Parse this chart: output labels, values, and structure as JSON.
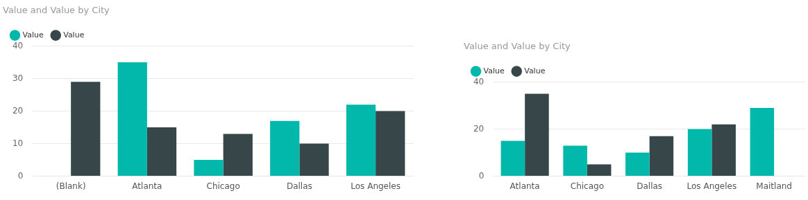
{
  "chart_data": [
    {
      "type": "bar",
      "title": "Value and Value by City",
      "categories": [
        "(Blank)",
        "Atlanta",
        "Chicago",
        "Dallas",
        "Los Angeles"
      ],
      "series": [
        {
          "name": "Value",
          "color": "#01b8aa",
          "values": [
            null,
            35,
            5,
            17,
            22
          ]
        },
        {
          "name": "Value",
          "color": "#374649",
          "values": [
            29,
            15,
            13,
            10,
            20
          ]
        }
      ],
      "ylim": [
        0,
        40
      ],
      "yticks": [
        0,
        10,
        20,
        30,
        40
      ],
      "grid": "y",
      "legend": "top left"
    },
    {
      "type": "bar",
      "title": "Value and Value by City",
      "categories": [
        "Atlanta",
        "Chicago",
        "Dallas",
        "Los Angeles",
        "Maitland"
      ],
      "series": [
        {
          "name": "Value",
          "color": "#01b8aa",
          "values": [
            15,
            13,
            10,
            20,
            29
          ]
        },
        {
          "name": "Value",
          "color": "#374649",
          "values": [
            35,
            5,
            17,
            22,
            null
          ]
        }
      ],
      "ylim": [
        0,
        40
      ],
      "yticks": [
        0,
        20,
        40
      ],
      "grid": "y",
      "legend": "top left"
    }
  ]
}
